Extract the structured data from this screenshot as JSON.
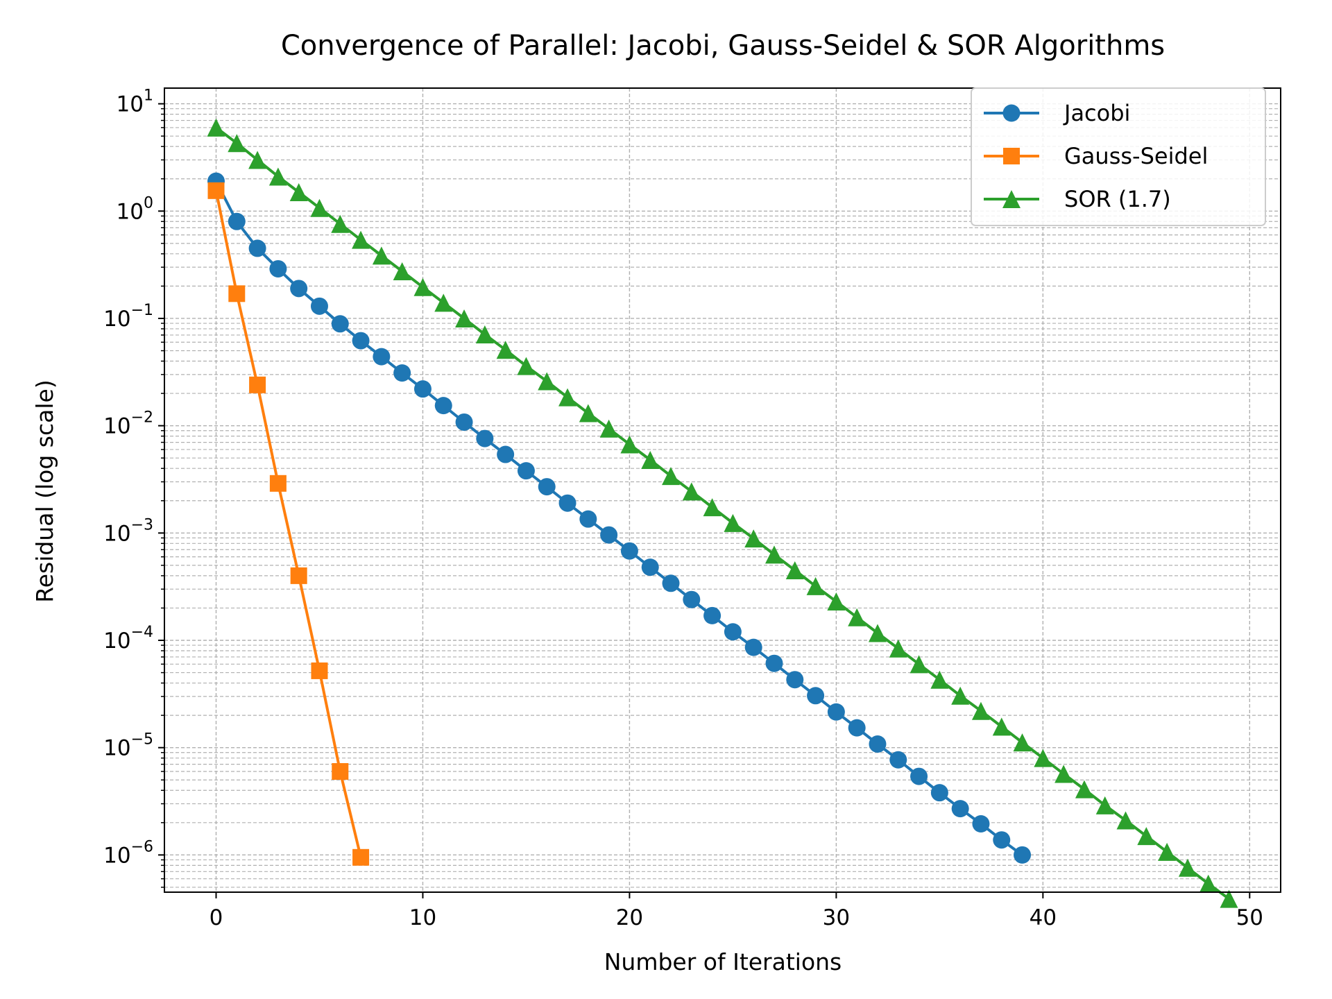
{
  "chart_data": {
    "type": "line",
    "title": "Convergence of Parallel: Jacobi, Gauss-Seidel & SOR Algorithms",
    "xlabel": "Number of Iterations",
    "ylabel": "Residual (log scale)",
    "xlim": [
      -2.5,
      51.5
    ],
    "ylim": [
      4.5e-07,
      14
    ],
    "yscale": "log",
    "grid": true,
    "legend_position": "top-right",
    "x_ticks": [
      {
        "value": 0,
        "label": "0"
      },
      {
        "value": 10,
        "label": "10"
      },
      {
        "value": 20,
        "label": "20"
      },
      {
        "value": 30,
        "label": "30"
      },
      {
        "value": 40,
        "label": "40"
      },
      {
        "value": 50,
        "label": "50"
      }
    ],
    "y_ticks": [
      {
        "value": 10,
        "base": "10",
        "exp": "1"
      },
      {
        "value": 1,
        "base": "10",
        "exp": "0"
      },
      {
        "value": 0.1,
        "base": "10",
        "exp": "−1"
      },
      {
        "value": 0.01,
        "base": "10",
        "exp": "−2"
      },
      {
        "value": 0.001,
        "base": "10",
        "exp": "−3"
      },
      {
        "value": 0.0001,
        "base": "10",
        "exp": "−4"
      },
      {
        "value": 1e-05,
        "base": "10",
        "exp": "−5"
      },
      {
        "value": 1e-06,
        "base": "10",
        "exp": "−6"
      }
    ],
    "series": [
      {
        "name": "Jacobi",
        "color": "#1f77b4",
        "marker": "circle",
        "x": [
          0,
          1,
          2,
          3,
          4,
          5,
          6,
          7,
          8,
          9,
          10,
          11,
          12,
          13,
          14,
          15,
          16,
          17,
          18,
          19,
          20,
          21,
          22,
          23,
          24,
          25,
          26,
          27,
          28,
          29,
          30,
          31,
          32,
          33,
          34,
          35,
          36,
          37,
          38,
          39
        ],
        "y": [
          1.9,
          0.8,
          0.45,
          0.29,
          0.19,
          0.13,
          0.089,
          0.062,
          0.044,
          0.031,
          0.022,
          0.0154,
          0.0108,
          0.0076,
          0.0054,
          0.0038,
          0.0027,
          0.0019,
          0.00135,
          0.00096,
          0.00068,
          0.00048,
          0.00034,
          0.00024,
          0.00017,
          0.00012,
          8.6e-05,
          6.1e-05,
          4.3e-05,
          3.05e-05,
          2.15e-05,
          1.53e-05,
          1.08e-05,
          7.7e-06,
          5.4e-06,
          3.8e-06,
          2.7e-06,
          1.95e-06,
          1.38e-06,
          1e-06
        ]
      },
      {
        "name": "Gauss-Seidel",
        "color": "#ff7f0e",
        "marker": "square",
        "x": [
          0,
          1,
          2,
          3,
          4,
          5,
          6,
          7
        ],
        "y": [
          1.55,
          0.17,
          0.024,
          0.0029,
          0.0004,
          5.2e-05,
          6e-06,
          9.5e-07
        ]
      },
      {
        "name": "SOR (1.7)",
        "color": "#2ca02c",
        "marker": "triangle",
        "x": [
          0,
          1,
          2,
          3,
          4,
          5,
          6,
          7,
          8,
          9,
          10,
          11,
          12,
          13,
          14,
          15,
          16,
          17,
          18,
          19,
          20,
          21,
          22,
          23,
          24,
          25,
          26,
          27,
          28,
          29,
          30,
          31,
          32,
          33,
          34,
          35,
          36,
          37,
          38,
          39,
          40,
          41,
          42,
          43,
          44,
          45,
          46,
          47,
          48,
          49
        ],
        "y": [
          6.0,
          4.3,
          3.0,
          2.1,
          1.5,
          1.07,
          0.76,
          0.54,
          0.385,
          0.275,
          0.196,
          0.14,
          0.1,
          0.071,
          0.051,
          0.036,
          0.026,
          0.0184,
          0.0131,
          0.0094,
          0.0067,
          0.0048,
          0.0034,
          0.00244,
          0.00174,
          0.00124,
          0.00089,
          0.00063,
          0.00045,
          0.00032,
          0.00023,
          0.000164,
          0.000117,
          8.4e-05,
          6e-05,
          4.3e-05,
          3.05e-05,
          2.2e-05,
          1.57e-05,
          1.12e-05,
          8e-06,
          5.7e-06,
          4.1e-06,
          2.9e-06,
          2.1e-06,
          1.5e-06,
          1.07e-06,
          7.6e-07,
          5.4e-07,
          3.9e-07
        ]
      }
    ]
  }
}
